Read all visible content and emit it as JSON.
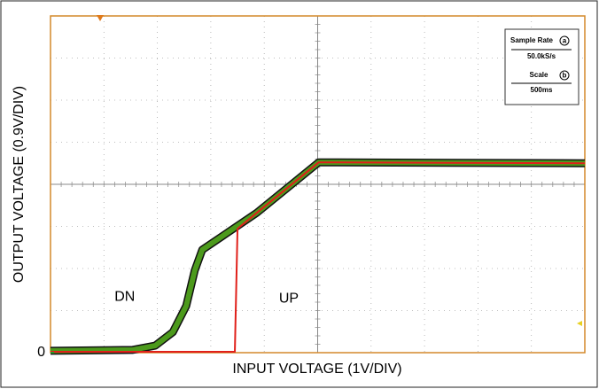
{
  "chart_data": {
    "type": "line",
    "x_label": "INPUT VOLTAGE (1V/DIV)",
    "y_label": "OUTPUT VOLTAGE (0.9V/DIV)",
    "xlim": [
      0,
      10
    ],
    "ylim": [
      0,
      7.2
    ],
    "yticks": [
      0
    ],
    "series": [
      {
        "name": "DN",
        "color": "#4c9a1c",
        "x": [
          0,
          1.54,
          1.96,
          2.29,
          2.54,
          2.7,
          2.84,
          3.86,
          5.02,
          10
        ],
        "values": [
          0.04,
          0.06,
          0.15,
          0.44,
          1.0,
          1.76,
          2.2,
          2.99,
          4.07,
          4.05
        ]
      },
      {
        "name": "UP",
        "color": "#e0201a",
        "x": [
          0,
          3.45,
          3.5,
          3.86,
          5.02,
          10
        ],
        "values": [
          0.02,
          0.02,
          2.65,
          2.99,
          4.07,
          4.05
        ]
      }
    ],
    "info": {
      "sample_rate_label": "Sample Rate",
      "sample_rate_marker": "a",
      "sample_rate": "50.0kS/s",
      "scale_label": "Scale",
      "scale_marker": "b",
      "scale": "500ms"
    }
  }
}
